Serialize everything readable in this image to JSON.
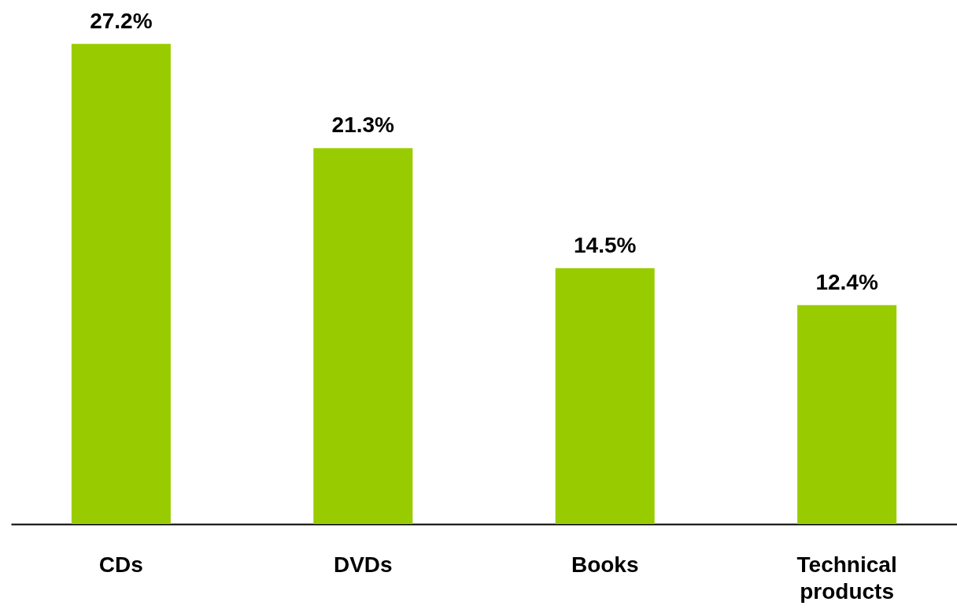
{
  "chart_data": {
    "type": "bar",
    "categories": [
      "CDs",
      "DVDs",
      "Books",
      "Technical products"
    ],
    "values": [
      27.2,
      21.3,
      14.5,
      12.4
    ],
    "value_labels": [
      "27.2%",
      "21.3%",
      "14.5%",
      "12.4%"
    ],
    "color": "#99cc00"
  }
}
